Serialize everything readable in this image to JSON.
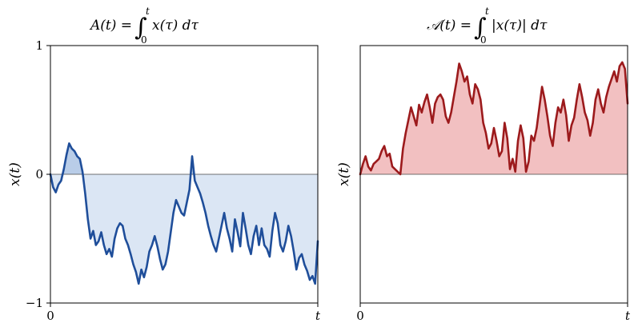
{
  "chart_data": [
    {
      "type": "area",
      "title": {
        "main": "A(t) = ",
        "integral": "∫",
        "upper": "t",
        "lower": "0",
        "integrand": "x(τ) dτ"
      },
      "xlabel": "t",
      "ylabel": "x(t)",
      "xtick_labels": [
        "0",
        "t"
      ],
      "ytick_labels": [
        "1",
        "0",
        "−1"
      ],
      "yticks": [
        1,
        0,
        -1
      ],
      "xlim": [
        0,
        1
      ],
      "ylim": [
        -1,
        1
      ],
      "line_color": "#1f4e9a",
      "fill_color": "#dbe6f4",
      "fill_color_positive": "#b9cde8",
      "baseline": 0,
      "x": [
        0.0,
        0.01,
        0.02,
        0.03,
        0.04,
        0.05,
        0.06,
        0.07,
        0.08,
        0.09,
        0.1,
        0.11,
        0.12,
        0.13,
        0.14,
        0.15,
        0.16,
        0.17,
        0.18,
        0.19,
        0.2,
        0.21,
        0.22,
        0.23,
        0.24,
        0.25,
        0.26,
        0.27,
        0.28,
        0.29,
        0.3,
        0.31,
        0.32,
        0.33,
        0.34,
        0.35,
        0.36,
        0.37,
        0.38,
        0.39,
        0.4,
        0.41,
        0.42,
        0.43,
        0.44,
        0.45,
        0.46,
        0.47,
        0.48,
        0.49,
        0.5,
        0.51,
        0.52,
        0.53,
        0.54,
        0.55,
        0.56,
        0.57,
        0.58,
        0.59,
        0.6,
        0.61,
        0.62,
        0.63,
        0.64,
        0.65,
        0.66,
        0.67,
        0.68,
        0.69,
        0.7,
        0.71,
        0.72,
        0.73,
        0.74,
        0.75,
        0.76,
        0.77,
        0.78,
        0.79,
        0.8,
        0.81,
        0.82,
        0.83,
        0.84,
        0.85,
        0.86,
        0.87,
        0.88,
        0.89,
        0.9,
        0.91,
        0.92,
        0.93,
        0.94,
        0.95,
        0.96,
        0.97,
        0.98,
        0.99,
        1.0
      ],
      "y": [
        0.0,
        -0.1,
        -0.14,
        -0.08,
        -0.05,
        0.04,
        0.15,
        0.24,
        0.2,
        0.18,
        0.14,
        0.12,
        0.02,
        -0.15,
        -0.35,
        -0.5,
        -0.44,
        -0.55,
        -0.52,
        -0.45,
        -0.55,
        -0.62,
        -0.58,
        -0.64,
        -0.5,
        -0.42,
        -0.38,
        -0.4,
        -0.5,
        -0.55,
        -0.62,
        -0.7,
        -0.76,
        -0.85,
        -0.74,
        -0.8,
        -0.72,
        -0.6,
        -0.55,
        -0.48,
        -0.56,
        -0.66,
        -0.74,
        -0.7,
        -0.6,
        -0.45,
        -0.3,
        -0.2,
        -0.25,
        -0.3,
        -0.32,
        -0.22,
        -0.12,
        0.14,
        -0.05,
        -0.1,
        -0.15,
        -0.22,
        -0.3,
        -0.4,
        -0.48,
        -0.55,
        -0.6,
        -0.5,
        -0.4,
        -0.3,
        -0.42,
        -0.5,
        -0.6,
        -0.35,
        -0.45,
        -0.56,
        -0.3,
        -0.42,
        -0.55,
        -0.62,
        -0.48,
        -0.4,
        -0.55,
        -0.42,
        -0.55,
        -0.58,
        -0.64,
        -0.44,
        -0.3,
        -0.38,
        -0.55,
        -0.6,
        -0.52,
        -0.4,
        -0.48,
        -0.6,
        -0.74,
        -0.65,
        -0.62,
        -0.7,
        -0.75,
        -0.82,
        -0.79,
        -0.85,
        -0.52
      ]
    },
    {
      "type": "area",
      "title": {
        "main": "𝒜(t) = ",
        "integral": "∫",
        "upper": "t",
        "lower": "0",
        "integrand": "|x(τ)| dτ"
      },
      "xlabel": "t",
      "ylabel": "x(t)",
      "xtick_labels": [
        "0",
        "t"
      ],
      "xlim": [
        0,
        1
      ],
      "ylim": [
        -1,
        1
      ],
      "line_color": "#9c1a1c",
      "fill_color": "#f2c0c1",
      "baseline": 0,
      "x": [
        0.0,
        0.01,
        0.02,
        0.03,
        0.04,
        0.05,
        0.06,
        0.07,
        0.08,
        0.09,
        0.1,
        0.11,
        0.12,
        0.13,
        0.14,
        0.15,
        0.16,
        0.17,
        0.18,
        0.19,
        0.2,
        0.21,
        0.22,
        0.23,
        0.24,
        0.25,
        0.26,
        0.27,
        0.28,
        0.29,
        0.3,
        0.31,
        0.32,
        0.33,
        0.34,
        0.35,
        0.36,
        0.37,
        0.38,
        0.39,
        0.4,
        0.41,
        0.42,
        0.43,
        0.44,
        0.45,
        0.46,
        0.47,
        0.48,
        0.49,
        0.5,
        0.51,
        0.52,
        0.53,
        0.54,
        0.55,
        0.56,
        0.57,
        0.58,
        0.59,
        0.6,
        0.61,
        0.62,
        0.63,
        0.64,
        0.65,
        0.66,
        0.67,
        0.68,
        0.69,
        0.7,
        0.71,
        0.72,
        0.73,
        0.74,
        0.75,
        0.76,
        0.77,
        0.78,
        0.79,
        0.8,
        0.81,
        0.82,
        0.83,
        0.84,
        0.85,
        0.86,
        0.87,
        0.88,
        0.89,
        0.9,
        0.91,
        0.92,
        0.93,
        0.94,
        0.95,
        0.96,
        0.97,
        0.98,
        0.99,
        1.0
      ],
      "y": [
        0.0,
        0.08,
        0.14,
        0.06,
        0.03,
        0.08,
        0.1,
        0.12,
        0.18,
        0.22,
        0.14,
        0.16,
        0.06,
        0.04,
        0.02,
        0.0,
        0.2,
        0.32,
        0.42,
        0.52,
        0.45,
        0.38,
        0.54,
        0.48,
        0.56,
        0.62,
        0.52,
        0.4,
        0.55,
        0.6,
        0.62,
        0.58,
        0.45,
        0.4,
        0.48,
        0.6,
        0.72,
        0.86,
        0.8,
        0.72,
        0.76,
        0.62,
        0.55,
        0.7,
        0.66,
        0.58,
        0.4,
        0.32,
        0.2,
        0.24,
        0.36,
        0.26,
        0.14,
        0.18,
        0.4,
        0.28,
        0.04,
        0.12,
        0.02,
        0.26,
        0.38,
        0.28,
        0.02,
        0.1,
        0.3,
        0.26,
        0.36,
        0.52,
        0.68,
        0.58,
        0.45,
        0.3,
        0.22,
        0.4,
        0.52,
        0.48,
        0.58,
        0.46,
        0.26,
        0.38,
        0.44,
        0.58,
        0.7,
        0.6,
        0.48,
        0.42,
        0.3,
        0.4,
        0.58,
        0.66,
        0.55,
        0.48,
        0.6,
        0.68,
        0.74,
        0.8,
        0.72,
        0.84,
        0.87,
        0.82,
        0.55
      ]
    }
  ]
}
